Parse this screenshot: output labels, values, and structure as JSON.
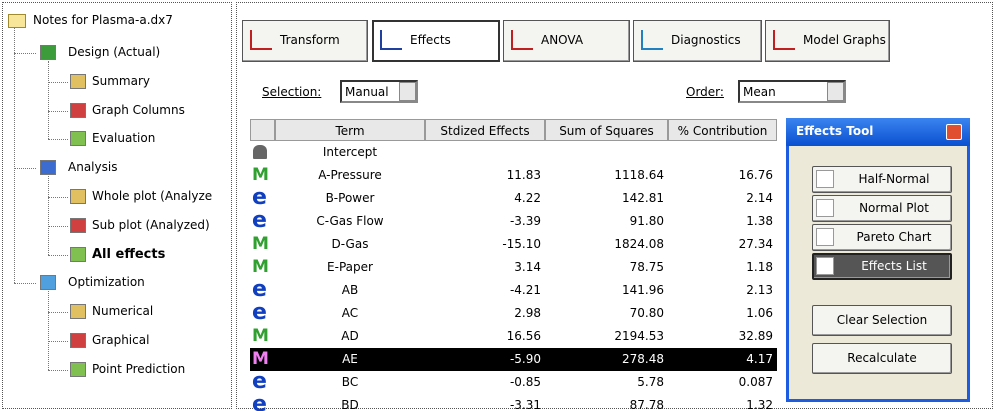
{
  "tree": {
    "root": "Notes for Plasma-a.dx7",
    "groups": [
      {
        "label": "Design (Actual)",
        "children": [
          "Summary",
          "Graph Columns",
          "Evaluation"
        ]
      },
      {
        "label": "Analysis",
        "children": [
          "Whole plot (Analyze",
          "Sub plot (Analyzed)",
          "All effects"
        ]
      },
      {
        "label": "Optimization",
        "children": [
          "Numerical",
          "Graphical",
          "Point Prediction"
        ]
      }
    ]
  },
  "toolbar": {
    "tabs": [
      "Transform",
      "Effects",
      "ANOVA",
      "Diagnostics",
      "Model Graphs"
    ]
  },
  "selection": {
    "label": "Selection:",
    "value": "Manual"
  },
  "order": {
    "label": "Order:",
    "value": "Mean"
  },
  "table": {
    "columns": [
      "Term",
      "Stdized Effects",
      "Sum of Squares",
      "% Contribution"
    ],
    "rows": [
      {
        "term": "Intercept",
        "cells": [
          "",
          "",
          ""
        ]
      },
      {
        "icon": "M",
        "term": "A-Pressure",
        "cells": [
          "11.83",
          "1118.64",
          "16.76"
        ]
      },
      {
        "icon": "e",
        "term": "B-Power",
        "cells": [
          "4.22",
          "142.81",
          "2.14"
        ]
      },
      {
        "icon": "e",
        "term": "C-Gas Flow",
        "cells": [
          "-3.39",
          "91.80",
          "1.38"
        ]
      },
      {
        "icon": "M",
        "term": "D-Gas",
        "cells": [
          "-15.10",
          "1824.08",
          "27.34"
        ]
      },
      {
        "icon": "M",
        "term": "E-Paper",
        "cells": [
          "3.14",
          "78.75",
          "1.18"
        ]
      },
      {
        "icon": "e",
        "term": "AB",
        "cells": [
          "-4.21",
          "141.96",
          "2.13"
        ]
      },
      {
        "icon": "e",
        "term": "AC",
        "cells": [
          "2.98",
          "70.80",
          "1.06"
        ]
      },
      {
        "icon": "M",
        "term": "AD",
        "cells": [
          "16.56",
          "2194.53",
          "32.89"
        ]
      },
      {
        "icon": "M",
        "term": "AE",
        "cells": [
          "-5.90",
          "278.48",
          "4.17"
        ]
      },
      {
        "icon": "e",
        "term": "BC",
        "cells": [
          "-0.85",
          "5.78",
          "0.087"
        ]
      },
      {
        "icon": "e",
        "term": "BD",
        "cells": [
          "-3.31",
          "87.78",
          "1.32"
        ]
      }
    ]
  },
  "effects_tool": {
    "title": "Effects Tool",
    "buttons": [
      "Half-Normal",
      "Normal Plot",
      "Pareto Chart",
      "Effects List"
    ],
    "actions": [
      "Clear Selection",
      "Recalculate"
    ]
  }
}
